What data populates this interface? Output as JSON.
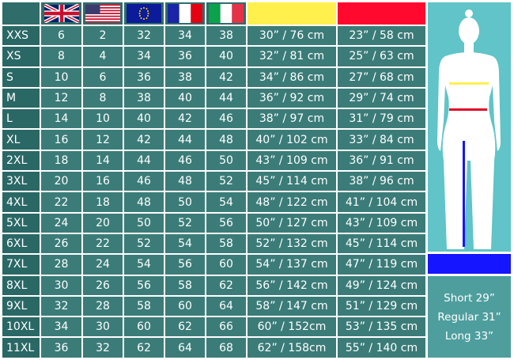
{
  "colors": {
    "hip_header": "#fff04e",
    "waist_header": "#ff0a2e",
    "inseam": "#1515ff"
  },
  "headers": [
    {
      "icon": "blank"
    },
    {
      "icon": "uk-flag"
    },
    {
      "icon": "us-flag"
    },
    {
      "icon": "eu-flag"
    },
    {
      "icon": "france-flag"
    },
    {
      "icon": "italy-flag"
    },
    {
      "icon": "hip-color-swatch"
    },
    {
      "icon": "waist-color-swatch"
    }
  ],
  "rows": [
    [
      "XXS",
      "6",
      "2",
      "32",
      "34",
      "38",
      "30” / 76 cm",
      "23” / 58 cm"
    ],
    [
      "XS",
      "8",
      "4",
      "34",
      "36",
      "40",
      "32” / 81 cm",
      "25” / 63 cm"
    ],
    [
      "S",
      "10",
      "6",
      "36",
      "38",
      "42",
      "34” / 86 cm",
      "27” / 68 cm"
    ],
    [
      "M",
      "12",
      "8",
      "38",
      "40",
      "44",
      "36” / 92 cm",
      "29” / 74 cm"
    ],
    [
      "L",
      "14",
      "10",
      "40",
      "42",
      "46",
      "38” / 97 cm",
      "31” / 79 cm"
    ],
    [
      "XL",
      "16",
      "12",
      "42",
      "44",
      "48",
      "40” / 102 cm",
      "33” / 84 cm"
    ],
    [
      "2XL",
      "18",
      "14",
      "44",
      "46",
      "50",
      "43” / 109 cm",
      "36” / 91 cm"
    ],
    [
      "3XL",
      "20",
      "16",
      "46",
      "48",
      "52",
      "45” / 114 cm",
      "38” / 96 cm"
    ],
    [
      "4XL",
      "22",
      "18",
      "48",
      "50",
      "54",
      "48” / 122 cm",
      "41” / 104 cm"
    ],
    [
      "5XL",
      "24",
      "20",
      "50",
      "52",
      "56",
      "50” / 127 cm",
      "43” / 109 cm"
    ],
    [
      "6XL",
      "26",
      "22",
      "52",
      "54",
      "58",
      "52” / 132 cm",
      "45” / 114 cm"
    ],
    [
      "7XL",
      "28",
      "24",
      "54",
      "56",
      "60",
      "54” / 137 cm",
      "47” / 119 cm"
    ],
    [
      "8XL",
      "30",
      "26",
      "56",
      "58",
      "62",
      "56” / 142 cm",
      "49” / 124 cm"
    ],
    [
      "9XL",
      "32",
      "28",
      "58",
      "60",
      "64",
      "58” / 147 cm",
      "51” / 129 cm"
    ],
    [
      "10XL",
      "34",
      "30",
      "60",
      "62",
      "66",
      "60” / 152cm",
      "53” / 135 cm"
    ],
    [
      "11XL",
      "36",
      "32",
      "62",
      "64",
      "68",
      "62” / 158cm",
      "55” / 140 cm"
    ]
  ],
  "inseam": [
    "Short 29”",
    "Regular 31”",
    "Long 33”"
  ]
}
